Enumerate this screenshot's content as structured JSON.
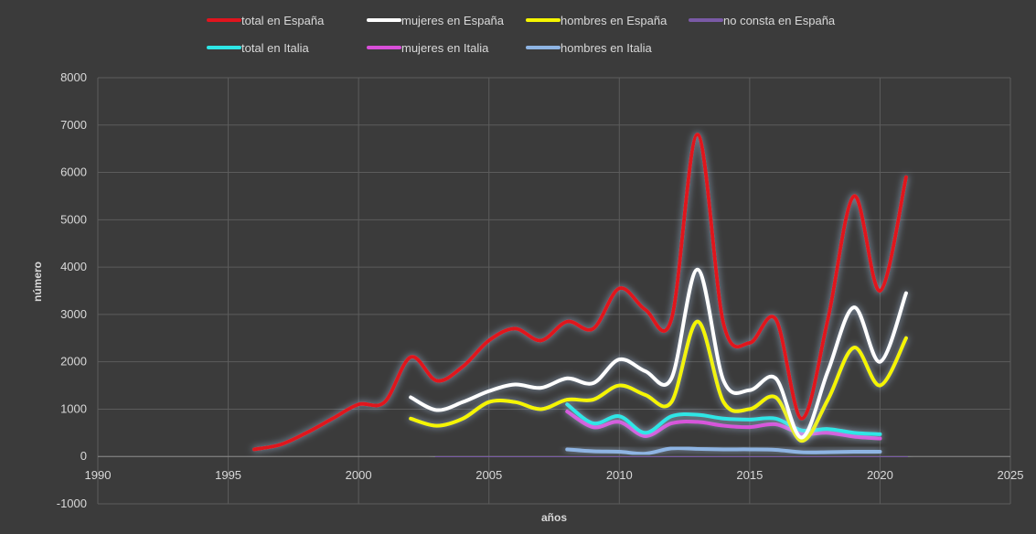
{
  "chart_data": {
    "type": "line",
    "title": "",
    "xlabel": "años",
    "ylabel": "número",
    "xlim": [
      1990,
      2025
    ],
    "ylim": [
      -1000,
      8000
    ],
    "xticks": [
      1990,
      1995,
      2000,
      2005,
      2010,
      2015,
      2020,
      2025
    ],
    "yticks": [
      -1000,
      0,
      1000,
      2000,
      3000,
      4000,
      5000,
      6000,
      7000,
      8000
    ],
    "grid": true,
    "legend_position": "top",
    "series": [
      {
        "name": "total en España",
        "color": "#e0141e",
        "x": [
          1996,
          1997,
          1998,
          1999,
          2000,
          2001,
          2002,
          2003,
          2004,
          2005,
          2006,
          2007,
          2008,
          2009,
          2010,
          2011,
          2012,
          2013,
          2014,
          2015,
          2016,
          2017,
          2018,
          2019,
          2020,
          2021
        ],
        "y": [
          150,
          250,
          500,
          800,
          1100,
          1150,
          2100,
          1600,
          1900,
          2450,
          2700,
          2450,
          2850,
          2700,
          3550,
          3100,
          2900,
          6800,
          2800,
          2400,
          2900,
          800,
          2900,
          5500,
          3500,
          5900
        ]
      },
      {
        "name": "mujeres en España",
        "color": "#ffffff",
        "x": [
          2002,
          2003,
          2004,
          2005,
          2006,
          2007,
          2008,
          2009,
          2010,
          2011,
          2012,
          2013,
          2014,
          2015,
          2016,
          2017,
          2018,
          2019,
          2020,
          2021
        ],
        "y": [
          1250,
          980,
          1150,
          1380,
          1520,
          1450,
          1650,
          1550,
          2050,
          1800,
          1650,
          3950,
          1600,
          1400,
          1650,
          400,
          1800,
          3150,
          2000,
          3450
        ]
      },
      {
        "name": "hombres en España",
        "color": "#f5f500",
        "x": [
          2002,
          2003,
          2004,
          2005,
          2006,
          2007,
          2008,
          2009,
          2010,
          2011,
          2012,
          2013,
          2014,
          2015,
          2016,
          2017,
          2018,
          2019,
          2020,
          2021
        ],
        "y": [
          800,
          650,
          800,
          1150,
          1150,
          1000,
          1200,
          1200,
          1500,
          1300,
          1150,
          2850,
          1150,
          1000,
          1250,
          330,
          1200,
          2300,
          1500,
          2500
        ]
      },
      {
        "name": "no consta en España",
        "color": "#7a5aa6",
        "x": [
          2003,
          2005,
          2007,
          2009,
          2011,
          2013,
          2015,
          2017,
          2019,
          2021
        ],
        "y": [
          -10,
          0,
          0,
          0,
          0,
          0,
          0,
          0,
          0,
          -10
        ]
      },
      {
        "name": "total en Italia",
        "color": "#2ee6e6",
        "x": [
          2008,
          2009,
          2010,
          2011,
          2012,
          2013,
          2014,
          2015,
          2016,
          2017,
          2018,
          2019,
          2020
        ],
        "y": [
          1100,
          700,
          850,
          500,
          850,
          880,
          800,
          780,
          800,
          550,
          580,
          500,
          470
        ]
      },
      {
        "name": "mujeres en Italia",
        "color": "#d94fd9",
        "x": [
          2008,
          2009,
          2010,
          2011,
          2012,
          2013,
          2014,
          2015,
          2016,
          2017,
          2018,
          2019,
          2020
        ],
        "y": [
          950,
          620,
          730,
          430,
          700,
          730,
          650,
          620,
          680,
          480,
          500,
          420,
          380
        ]
      },
      {
        "name": "hombres en Italia",
        "color": "#8eb4e3",
        "x": [
          2008,
          2009,
          2010,
          2011,
          2012,
          2013,
          2014,
          2015,
          2016,
          2017,
          2018,
          2019,
          2020
        ],
        "y": [
          150,
          110,
          100,
          60,
          170,
          160,
          150,
          150,
          140,
          90,
          90,
          100,
          100
        ]
      }
    ]
  }
}
